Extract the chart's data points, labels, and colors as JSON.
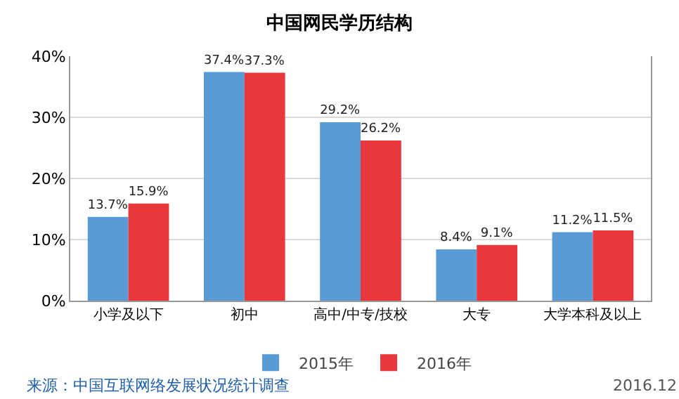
{
  "chart_data": {
    "type": "bar",
    "title": "中国网民学历结构",
    "categories": [
      "小学及以下",
      "初中",
      "高中/中专/技校",
      "大专",
      "大学本科及以上"
    ],
    "series": [
      {
        "name": "2015年",
        "color": "#5b9bd5",
        "values": [
          13.7,
          37.4,
          29.2,
          8.4,
          11.2
        ],
        "value_labels": [
          "13.7%",
          "37.4%",
          "29.2%",
          "8.4%",
          "11.2%"
        ]
      },
      {
        "name": "2016年",
        "color": "#e8383d",
        "values": [
          15.9,
          37.3,
          26.2,
          9.1,
          11.5
        ],
        "value_labels": [
          "15.9%",
          "37.3%",
          "26.2%",
          "9.1%",
          "11.5%"
        ]
      }
    ],
    "ylim": [
      0,
      40
    ],
    "yticks": [
      {
        "value": 0,
        "label": "0%"
      },
      {
        "value": 10,
        "label": "10%"
      },
      {
        "value": 20,
        "label": "20%"
      },
      {
        "value": 30,
        "label": "30%"
      },
      {
        "value": 40,
        "label": "40%"
      }
    ],
    "grid": "y",
    "legend": "bottom",
    "annotations": [
      "来源：中国互联网络发展状况统计调查",
      "2016.12"
    ]
  }
}
